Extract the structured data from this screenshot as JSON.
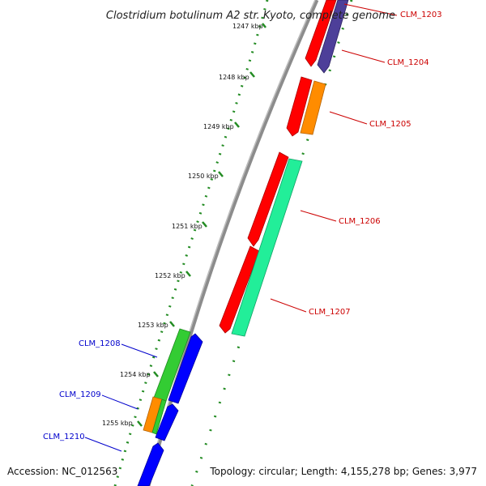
{
  "title": "Clostridium botulinum A2 str. Kyoto, complete genome",
  "footer": {
    "accession": "Accession: NC_012563",
    "summary": "Topology: circular; Length: 4,155,278 bp; Genes: 3,977"
  },
  "ruler": {
    "ticks": [
      {
        "label": "1247 kbp",
        "kbp": 1247
      },
      {
        "label": "1248 kbp",
        "kbp": 1248
      },
      {
        "label": "1249 kbp",
        "kbp": 1249
      },
      {
        "label": "1250 kbp",
        "kbp": 1250
      },
      {
        "label": "1251 kbp",
        "kbp": 1251
      },
      {
        "label": "1252 kbp",
        "kbp": 1252
      },
      {
        "label": "1253 kbp",
        "kbp": 1253
      },
      {
        "label": "1254 kbp",
        "kbp": 1254
      },
      {
        "label": "1255 kbp",
        "kbp": 1255
      }
    ]
  },
  "genes": [
    {
      "label": "CLM_1203",
      "strand": "forward",
      "color": "#cc0000"
    },
    {
      "label": "CLM_1204",
      "strand": "forward",
      "color": "#cc0000"
    },
    {
      "label": "CLM_1205",
      "strand": "forward",
      "color": "#cc0000"
    },
    {
      "label": "CLM_1206",
      "strand": "forward",
      "color": "#cc0000"
    },
    {
      "label": "CLM_1207",
      "strand": "forward",
      "color": "#cc0000"
    },
    {
      "label": "CLM_1208",
      "strand": "reverse",
      "color": "#0000cc"
    },
    {
      "label": "CLM_1209",
      "strand": "reverse",
      "color": "#0000cc"
    },
    {
      "label": "CLM_1210",
      "strand": "reverse",
      "color": "#0000cc"
    }
  ],
  "colors": {
    "cds": "#ff0000",
    "trna": "#ff8c00",
    "rrna_like": "#4d3f99",
    "misc_feature": "#22ee99",
    "reverse_cds": "#0000ff",
    "reverse_other": "#33cc33",
    "backbone": "#8c8c8c",
    "ruler_dots": "#228b22"
  }
}
